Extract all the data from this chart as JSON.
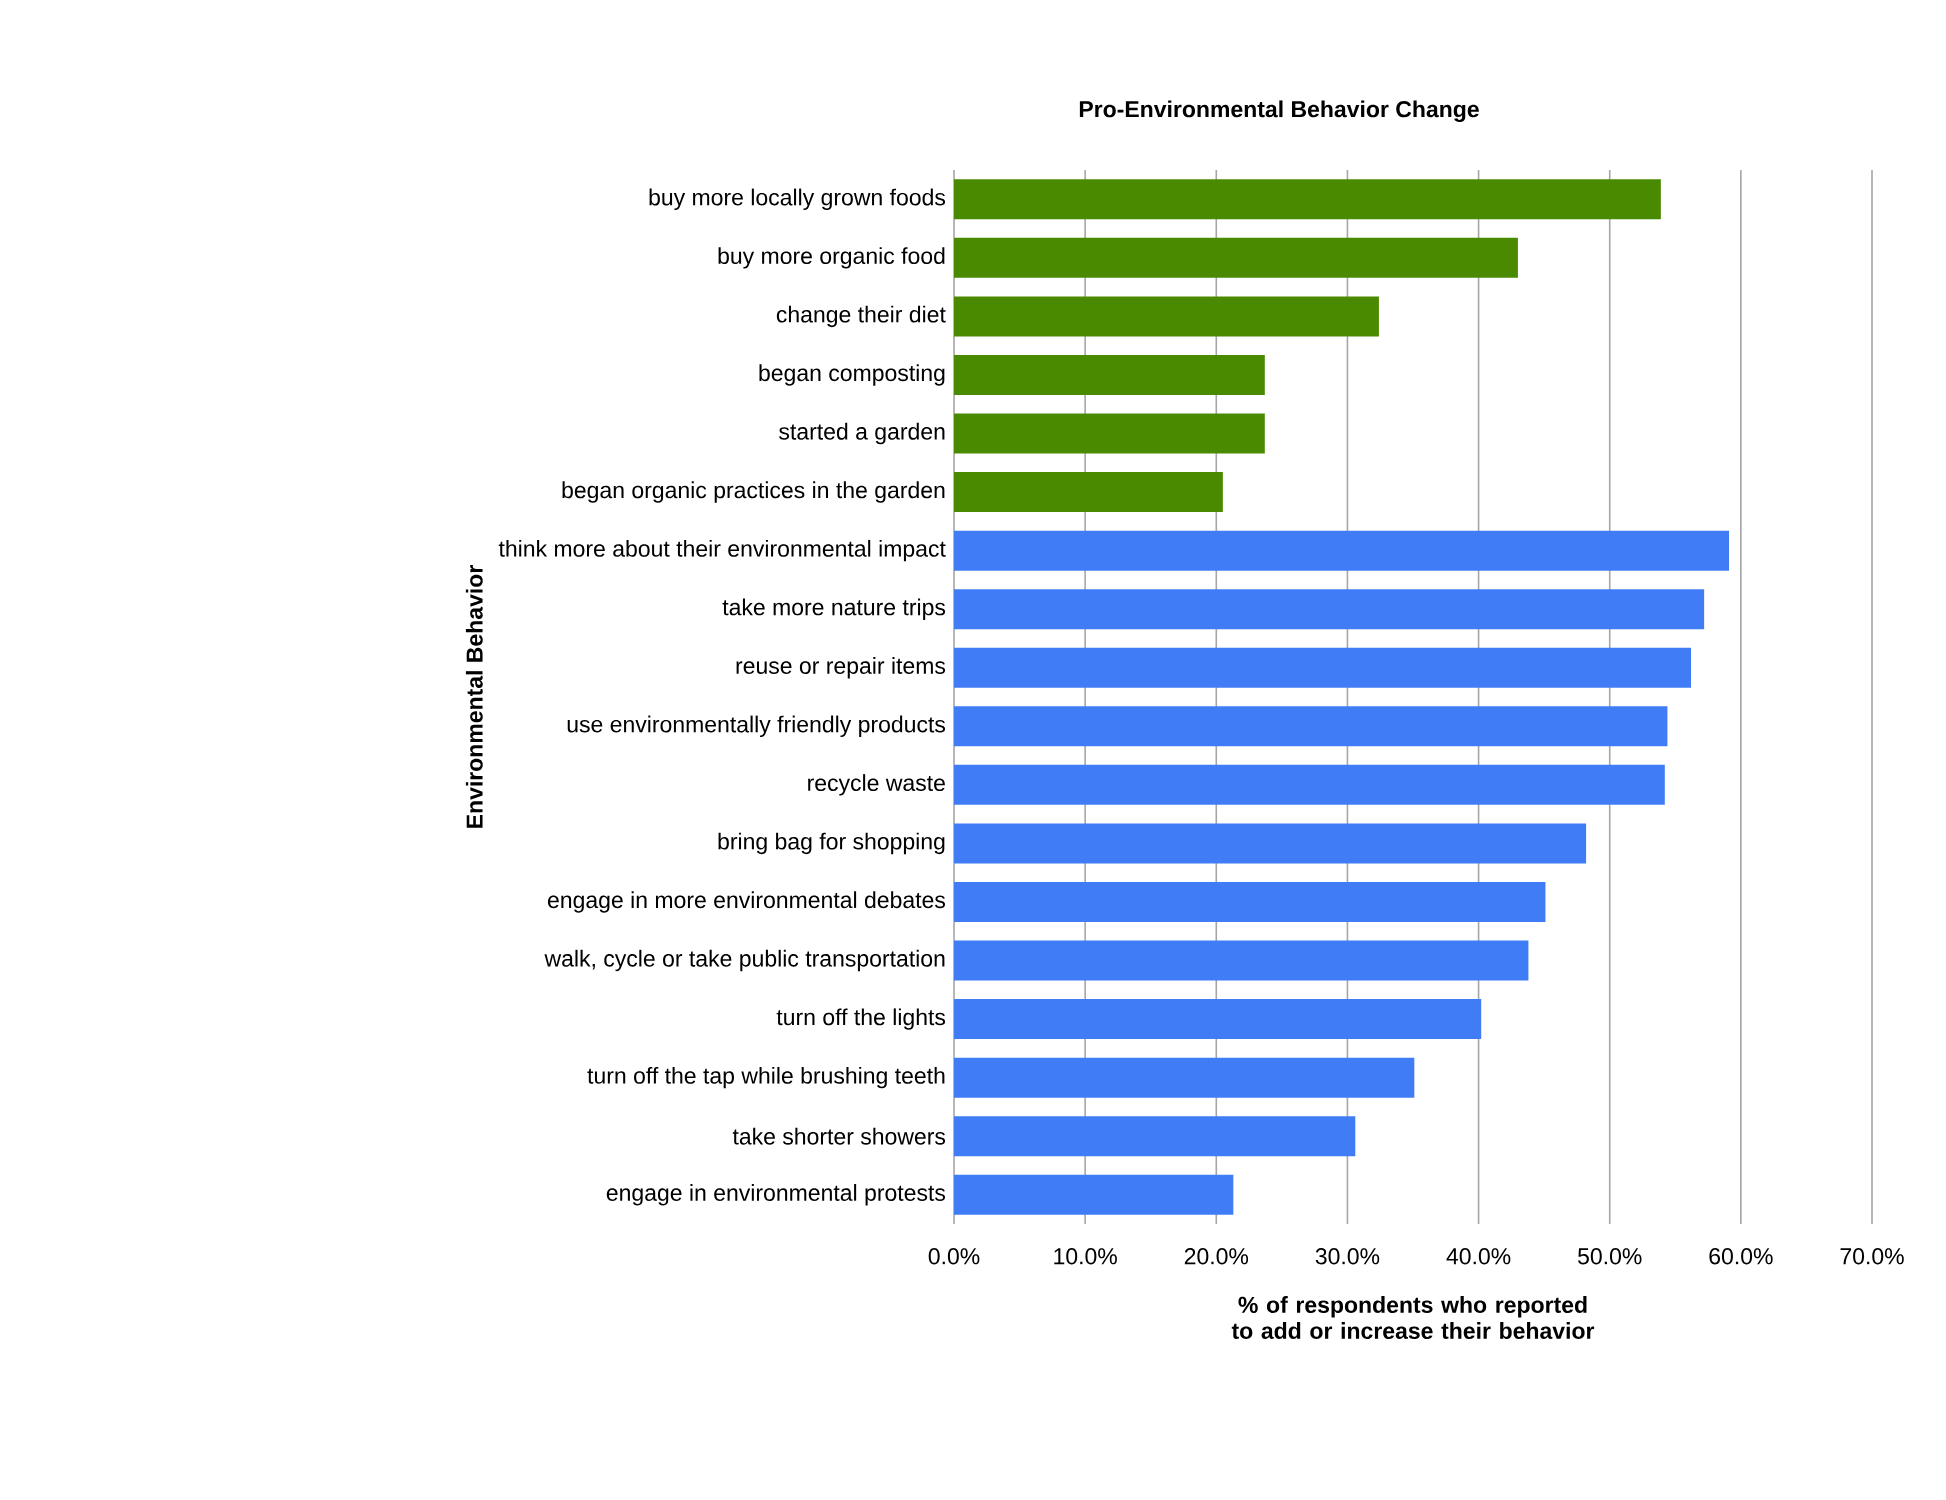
{
  "chart_data": {
    "type": "bar",
    "orientation": "horizontal",
    "title": "Pro-Environmental Behavior Change",
    "xlabel": "% of respondents who reported to add or increase their behavior",
    "ylabel": "Environmental Behavior",
    "categories": [
      "buy more locally grown foods",
      "buy more organic food",
      "change their diet",
      "began composting",
      "started a garden",
      "began organic practices in the garden",
      "think more about their environmental impact",
      "take more nature trips",
      "reuse or repair items",
      "use environmentally friendly products",
      "recycle waste",
      "bring bag for shopping",
      "engage in more environmental debates",
      "walk, cycle or take public transportation",
      "turn off the lights",
      "turn off the tap while brushing teeth",
      "take shorter showers",
      "engage in environmental protests"
    ],
    "values": [
      53.9,
      43.0,
      32.4,
      23.7,
      23.7,
      20.5,
      59.1,
      57.2,
      56.2,
      54.4,
      54.2,
      48.2,
      45.1,
      43.8,
      40.2,
      35.1,
      30.6,
      21.3
    ],
    "colors": [
      "#4a8a00",
      "#4a8a00",
      "#4a8a00",
      "#4a8a00",
      "#4a8a00",
      "#4a8a00",
      "#3f7cf5",
      "#3f7cf5",
      "#3f7cf5",
      "#3f7cf5",
      "#3f7cf5",
      "#3f7cf5",
      "#3f7cf5",
      "#3f7cf5",
      "#3f7cf5",
      "#3f7cf5",
      "#3f7cf5",
      "#3f7cf5"
    ],
    "xlim": [
      0,
      70
    ],
    "xticks": [
      {
        "value": 0,
        "label": "0.0%"
      },
      {
        "value": 10,
        "label": "10.0%"
      },
      {
        "value": 20,
        "label": "20.0%"
      },
      {
        "value": 30,
        "label": "30.0%"
      },
      {
        "value": 40,
        "label": "40.0%"
      },
      {
        "value": 50,
        "label": "50.0%"
      },
      {
        "value": 60,
        "label": "60.0%"
      },
      {
        "value": 70,
        "label": "70.0%"
      }
    ],
    "grid": "x"
  }
}
